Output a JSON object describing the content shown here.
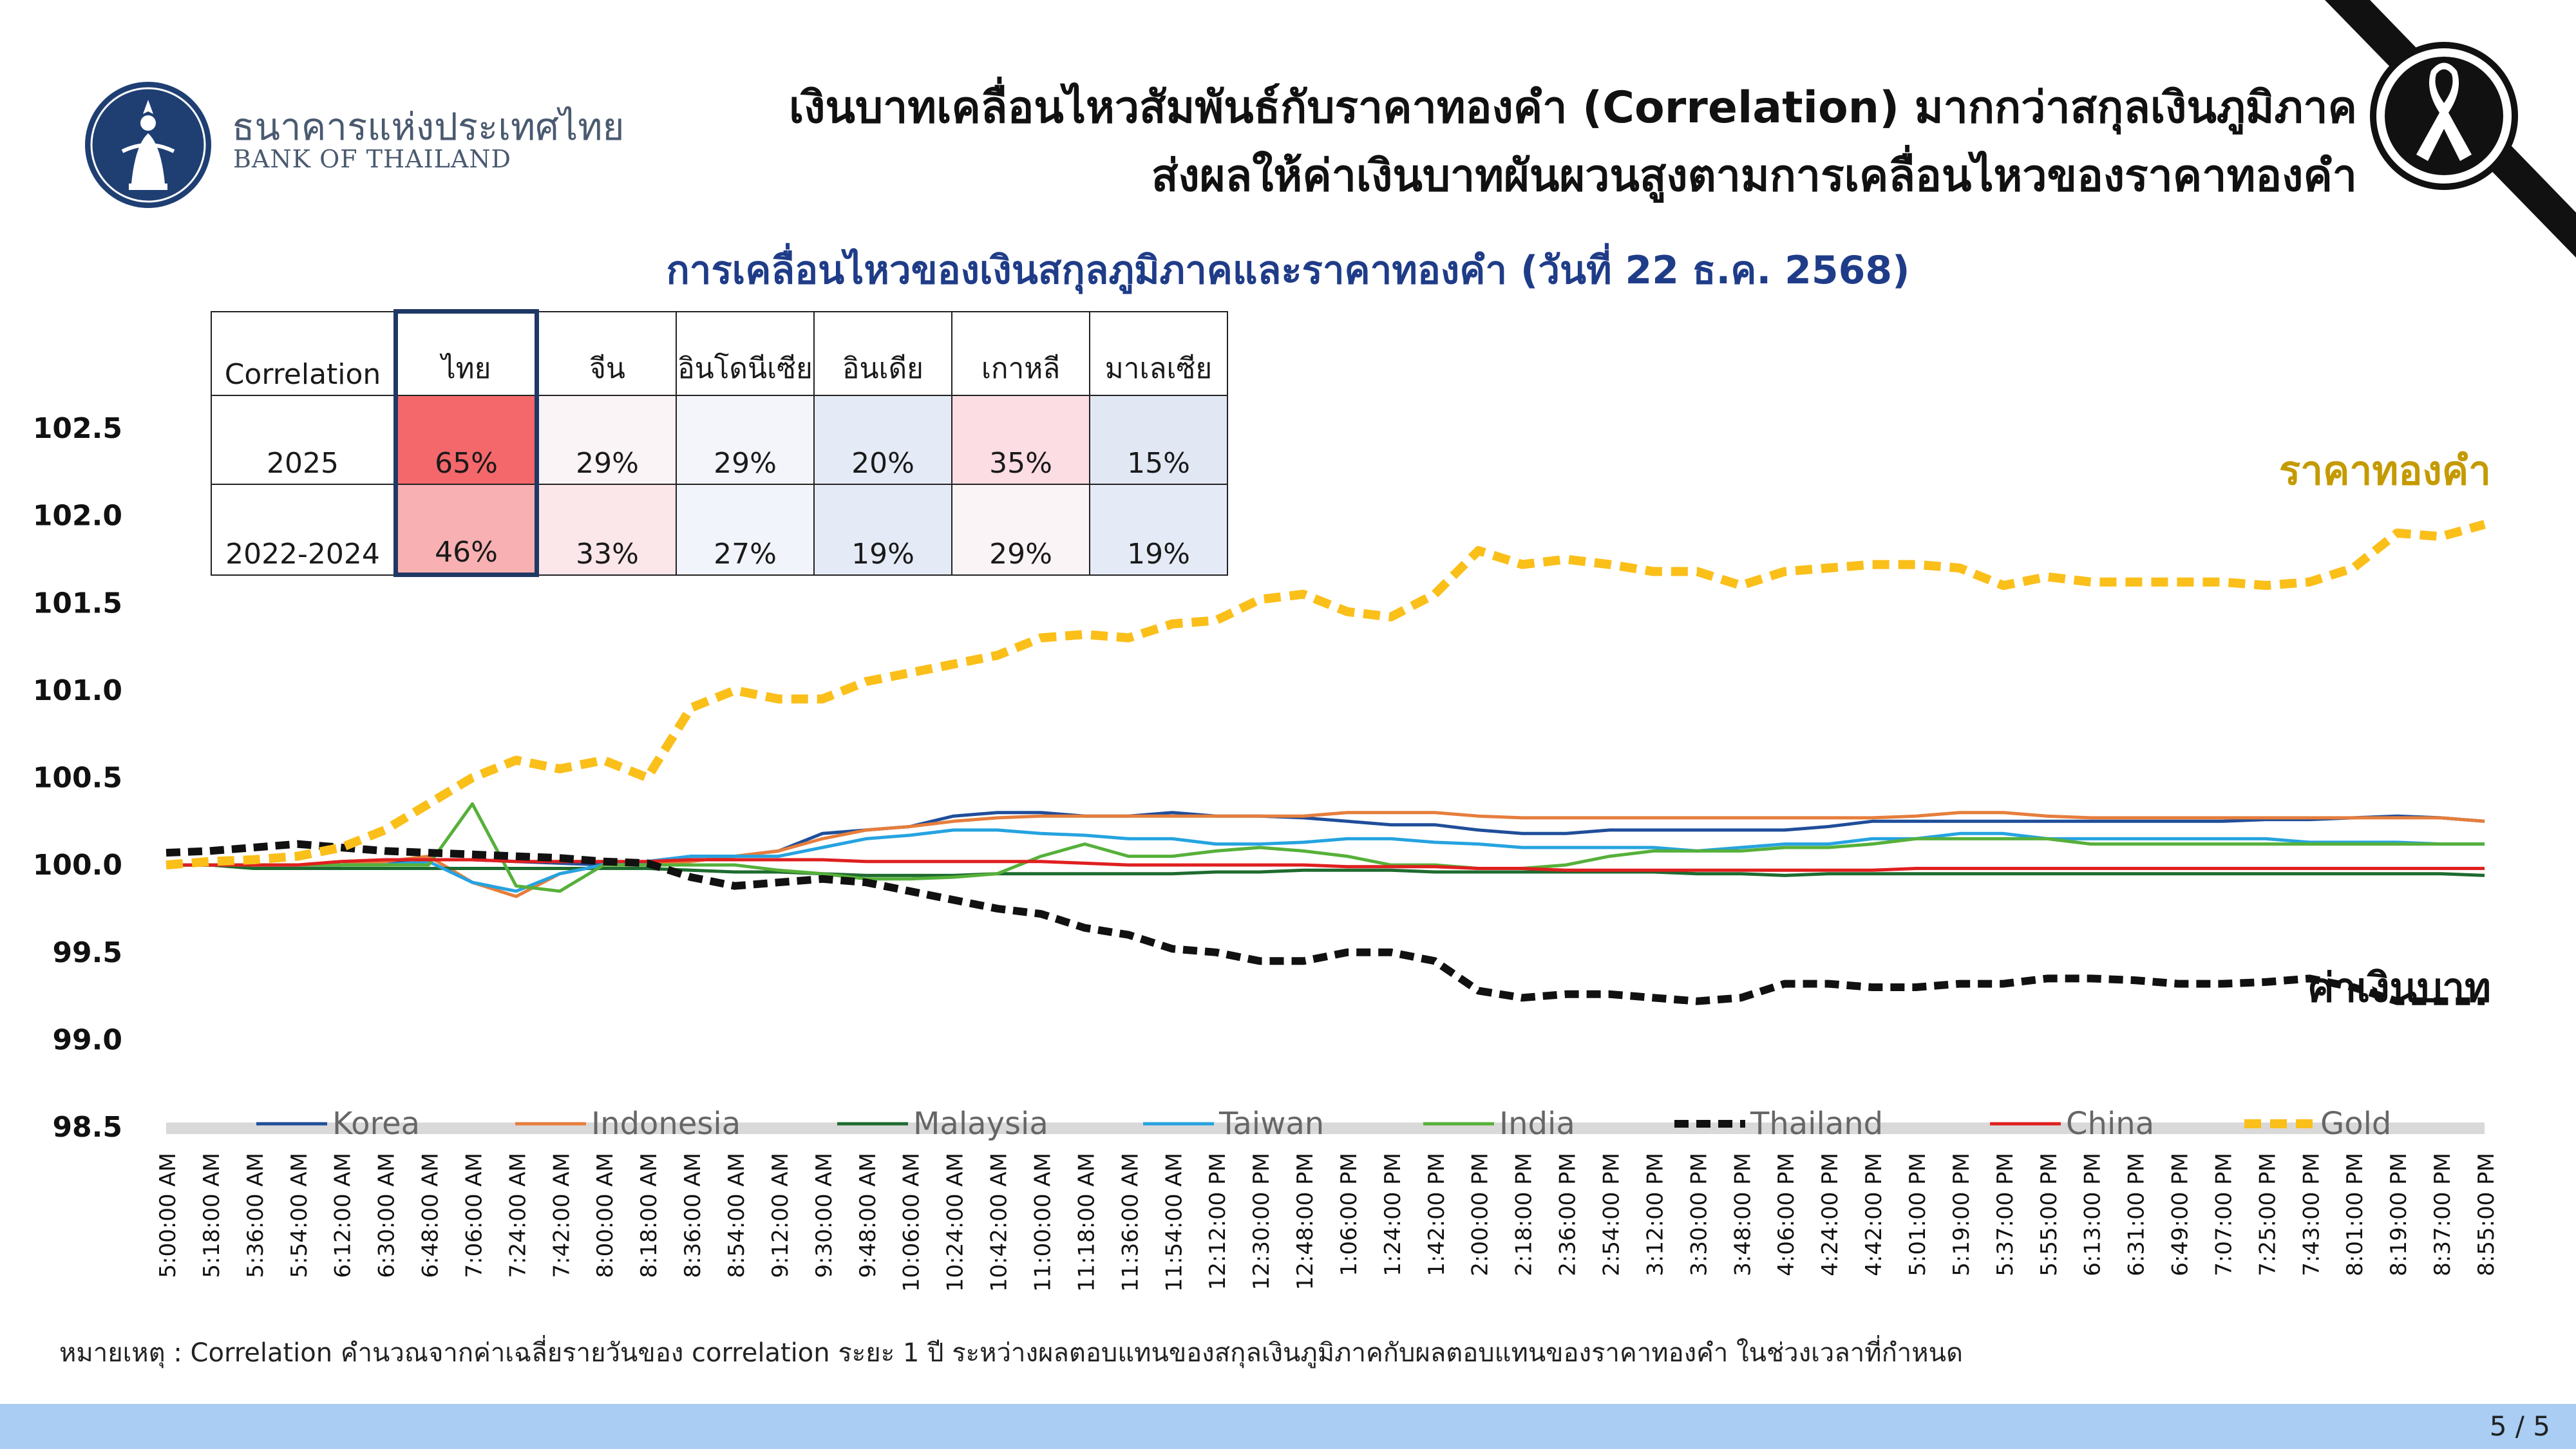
{
  "header": {
    "bank_name_th": "ธนาคารแห่งประเทศไทย",
    "bank_name_en": "BANK OF THAILAND",
    "title_line1": "เงินบาทเคลื่อนไหวสัมพันธ์กับราคาทองคำ (Correlation) มากกว่าสกุลเงินภูมิภาค",
    "title_line2": "ส่งผลให้ค่าเงินบาทผันผวนสูงตามการเคลื่อนไหวของราคาทองคำ",
    "logo_icon": "bank-of-thailand-seal-icon",
    "mourning_icon": "black-ribbon-icon"
  },
  "colors": {
    "title": "#1f3c88",
    "gold_label": "#c49a00",
    "Korea": "#1f4e9a",
    "Indonesia": "#e67e3c",
    "Malaysia": "#1e6b30",
    "Taiwan": "#26a3e0",
    "India": "#56b03a",
    "Thailand": "#111111",
    "China": "#e01f1f",
    "Gold": "#fbbf1a",
    "cell_thai_2025": "#f4676a",
    "cell_thai_2022": "#f8b0b2"
  },
  "correlation_table": {
    "corner": "Correlation",
    "columns": [
      "ไทย",
      "จีน",
      "อินโดนีเซีย",
      "อินเดีย",
      "เกาหลี",
      "มาเลเซีย"
    ],
    "rows": [
      {
        "label": "2025",
        "values": [
          "65%",
          "29%",
          "29%",
          "20%",
          "35%",
          "15%"
        ],
        "colors": [
          "#f4676a",
          "#fbf4f7",
          "#f4f5fb",
          "#e5ebf6",
          "#fbdde3",
          "#e1e8f4"
        ]
      },
      {
        "label": "2022-2024",
        "values": [
          "46%",
          "33%",
          "27%",
          "19%",
          "29%",
          "19%"
        ],
        "colors": [
          "#f8b0b2",
          "#fbe6ea",
          "#f2f4fb",
          "#e5ebf6",
          "#fbf4f7",
          "#e5ebf6"
        ]
      }
    ]
  },
  "chart_data": {
    "type": "line",
    "title": "การเคลื่อนไหวของเงินสกุลภูมิภาคและราคาทองคำ (วันที่ 22 ธ.ค. 2568)",
    "xlabel": "",
    "ylabel": "",
    "ylim": [
      98.5,
      102.5
    ],
    "yticks": [
      "102.5",
      "102.0",
      "101.5",
      "101.0",
      "100.5",
      "100.0",
      "99.5",
      "99.0",
      "98.5"
    ],
    "grid": false,
    "legend_position": "bottom",
    "x_labels": [
      "5:00:00 AM",
      "5:18:00 AM",
      "5:36:00 AM",
      "5:54:00 AM",
      "6:12:00 AM",
      "6:30:00 AM",
      "6:48:00 AM",
      "7:06:00 AM",
      "7:24:00 AM",
      "7:42:00 AM",
      "8:00:00 AM",
      "8:18:00 AM",
      "8:36:00 AM",
      "8:54:00 AM",
      "9:12:00 AM",
      "9:30:00 AM",
      "9:48:00 AM",
      "10:06:00 AM",
      "10:24:00 AM",
      "10:42:00 AM",
      "11:00:00 AM",
      "11:18:00 AM",
      "11:36:00 AM",
      "11:54:00 AM",
      "12:12:00 PM",
      "12:30:00 PM",
      "12:48:00 PM",
      "1:06:00 PM",
      "1:24:00 PM",
      "1:42:00 PM",
      "2:00:00 PM",
      "2:18:00 PM",
      "2:36:00 PM",
      "2:54:00 PM",
      "3:12:00 PM",
      "3:30:00 PM",
      "3:48:00 PM",
      "4:06:00 PM",
      "4:24:00 PM",
      "4:42:00 PM",
      "5:01:00 PM",
      "5:19:00 PM",
      "5:37:00 PM",
      "5:55:00 PM",
      "6:13:00 PM",
      "6:31:00 PM",
      "6:49:00 PM",
      "7:07:00 PM",
      "7:25:00 PM",
      "7:43:00 PM",
      "8:01:00 PM",
      "8:19:00 PM",
      "8:37:00 PM",
      "8:55:00 PM"
    ],
    "annotations": {
      "gold": "ราคาทองคำ",
      "baht": "ค่าเงินบาท"
    },
    "series": [
      {
        "name": "Korea",
        "values": [
          100.0,
          100.0,
          100.0,
          100.0,
          100.0,
          100.02,
          100.03,
          100.03,
          100.02,
          100.01,
          100.0,
          100.02,
          100.05,
          100.05,
          100.08,
          100.18,
          100.2,
          100.22,
          100.28,
          100.3,
          100.3,
          100.28,
          100.28,
          100.3,
          100.28,
          100.28,
          100.27,
          100.25,
          100.23,
          100.23,
          100.2,
          100.18,
          100.18,
          100.2,
          100.2,
          100.2,
          100.2,
          100.2,
          100.22,
          100.25,
          100.25,
          100.25,
          100.25,
          100.25,
          100.25,
          100.25,
          100.25,
          100.25,
          100.26,
          100.26,
          100.27,
          100.28,
          100.27,
          100.25
        ]
      },
      {
        "name": "Indonesia",
        "values": [
          100.0,
          100.0,
          100.0,
          100.0,
          100.0,
          100.02,
          100.05,
          99.9,
          99.82,
          99.95,
          100.0,
          100.0,
          100.02,
          100.05,
          100.08,
          100.15,
          100.2,
          100.22,
          100.25,
          100.27,
          100.28,
          100.28,
          100.28,
          100.28,
          100.28,
          100.28,
          100.28,
          100.3,
          100.3,
          100.3,
          100.28,
          100.27,
          100.27,
          100.27,
          100.27,
          100.27,
          100.27,
          100.27,
          100.27,
          100.27,
          100.28,
          100.3,
          100.3,
          100.28,
          100.27,
          100.27,
          100.27,
          100.27,
          100.27,
          100.27,
          100.27,
          100.27,
          100.27,
          100.25
        ]
      },
      {
        "name": "Malaysia",
        "values": [
          100.0,
          100.0,
          99.98,
          99.98,
          99.98,
          99.98,
          99.98,
          99.98,
          99.98,
          99.98,
          99.98,
          99.98,
          99.97,
          99.96,
          99.96,
          99.95,
          99.94,
          99.94,
          99.94,
          99.95,
          99.95,
          99.95,
          99.95,
          99.95,
          99.96,
          99.96,
          99.97,
          99.97,
          99.97,
          99.96,
          99.96,
          99.96,
          99.96,
          99.96,
          99.96,
          99.95,
          99.95,
          99.94,
          99.95,
          99.95,
          99.95,
          99.95,
          99.95,
          99.95,
          99.95,
          99.95,
          99.95,
          99.95,
          99.95,
          99.95,
          99.95,
          99.95,
          99.95,
          99.94
        ]
      },
      {
        "name": "Taiwan",
        "values": [
          100.0,
          100.0,
          100.0,
          100.0,
          100.0,
          100.0,
          100.02,
          99.9,
          99.85,
          99.95,
          100.0,
          100.02,
          100.05,
          100.05,
          100.05,
          100.1,
          100.15,
          100.17,
          100.2,
          100.2,
          100.18,
          100.17,
          100.15,
          100.15,
          100.12,
          100.12,
          100.13,
          100.15,
          100.15,
          100.13,
          100.12,
          100.1,
          100.1,
          100.1,
          100.1,
          100.08,
          100.1,
          100.12,
          100.12,
          100.15,
          100.15,
          100.18,
          100.18,
          100.15,
          100.15,
          100.15,
          100.15,
          100.15,
          100.15,
          100.13,
          100.13,
          100.13,
          100.12,
          100.12
        ]
      },
      {
        "name": "India",
        "values": [
          100.0,
          100.0,
          100.0,
          100.0,
          100.0,
          100.0,
          100.0,
          100.35,
          99.88,
          99.85,
          100.0,
          100.0,
          100.0,
          100.0,
          99.97,
          99.95,
          99.92,
          99.92,
          99.93,
          99.95,
          100.05,
          100.12,
          100.05,
          100.05,
          100.08,
          100.1,
          100.08,
          100.05,
          100.0,
          100.0,
          99.98,
          99.98,
          100.0,
          100.05,
          100.08,
          100.08,
          100.08,
          100.1,
          100.1,
          100.12,
          100.15,
          100.15,
          100.15,
          100.15,
          100.12,
          100.12,
          100.12,
          100.12,
          100.12,
          100.12,
          100.12,
          100.12,
          100.12,
          100.12
        ]
      },
      {
        "name": "Thailand",
        "values": [
          100.07,
          100.08,
          100.1,
          100.12,
          100.1,
          100.08,
          100.07,
          100.06,
          100.05,
          100.04,
          100.02,
          100.01,
          99.93,
          99.88,
          99.9,
          99.92,
          99.9,
          99.85,
          99.8,
          99.75,
          99.72,
          99.64,
          99.6,
          99.52,
          99.5,
          99.45,
          99.45,
          99.5,
          99.5,
          99.45,
          99.28,
          99.24,
          99.26,
          99.26,
          99.24,
          99.22,
          99.24,
          99.32,
          99.32,
          99.3,
          99.3,
          99.32,
          99.32,
          99.35,
          99.35,
          99.34,
          99.32,
          99.32,
          99.33,
          99.35,
          99.3,
          99.22,
          99.22,
          99.22
        ]
      },
      {
        "name": "China",
        "values": [
          100.0,
          100.0,
          100.0,
          100.0,
          100.02,
          100.03,
          100.03,
          100.03,
          100.02,
          100.02,
          100.02,
          100.02,
          100.03,
          100.03,
          100.03,
          100.03,
          100.02,
          100.02,
          100.02,
          100.02,
          100.02,
          100.01,
          100.0,
          100.0,
          100.0,
          100.0,
          100.0,
          99.99,
          99.99,
          99.99,
          99.98,
          99.98,
          99.97,
          99.97,
          99.97,
          99.97,
          99.97,
          99.97,
          99.97,
          99.97,
          99.98,
          99.98,
          99.98,
          99.98,
          99.98,
          99.98,
          99.98,
          99.98,
          99.98,
          99.98,
          99.98,
          99.98,
          99.98,
          99.98
        ]
      },
      {
        "name": "Gold",
        "values": [
          100.0,
          100.02,
          100.03,
          100.05,
          100.1,
          100.2,
          100.35,
          100.5,
          100.6,
          100.55,
          100.6,
          100.5,
          100.9,
          101.0,
          100.95,
          100.95,
          101.05,
          101.1,
          101.15,
          101.2,
          101.3,
          101.32,
          101.3,
          101.38,
          101.4,
          101.52,
          101.55,
          101.45,
          101.42,
          101.55,
          101.8,
          101.72,
          101.75,
          101.72,
          101.68,
          101.68,
          101.6,
          101.68,
          101.7,
          101.72,
          101.72,
          101.7,
          101.6,
          101.65,
          101.62,
          101.62,
          101.62,
          101.62,
          101.6,
          101.62,
          101.7,
          101.9,
          101.88,
          101.95
        ]
      }
    ]
  },
  "footnote": "หมายเหตุ : Correlation คำนวณจากค่าเฉลี่ยรายวันของ correlation ระยะ 1 ปี ระหว่างผลตอบแทนของสกุลเงินภูมิภาคกับผลตอบแทนของราคาทองคำ ในช่วงเวลาที่กำหนด",
  "page_number": "5 / 5"
}
